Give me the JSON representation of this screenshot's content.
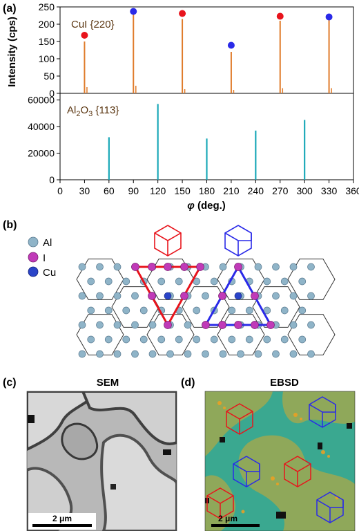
{
  "panels": {
    "a": "(a)",
    "b": "(b)",
    "c": "(c)",
    "d": "(d)"
  },
  "chart_data": [
    {
      "type": "bar",
      "panel": "(a) top",
      "series_label_main": "CuI {220}",
      "ylabel": "Intensity (cps)",
      "xlim": [
        0,
        360
      ],
      "ylim": [
        0,
        250
      ],
      "yticks": [
        0,
        50,
        100,
        150,
        200,
        250
      ],
      "color": "#e07b2a",
      "peaks": [
        {
          "x": 30,
          "y": 150
        },
        {
          "x": 90,
          "y": 235
        },
        {
          "x": 150,
          "y": 215
        },
        {
          "x": 210,
          "y": 120
        },
        {
          "x": 270,
          "y": 210
        },
        {
          "x": 330,
          "y": 215
        }
      ],
      "small_peaks": [
        {
          "x": 33,
          "y": 18
        },
        {
          "x": 93,
          "y": 22
        },
        {
          "x": 153,
          "y": 12
        },
        {
          "x": 213,
          "y": 10
        },
        {
          "x": 273,
          "y": 15
        },
        {
          "x": 333,
          "y": 15
        }
      ],
      "markers": [
        {
          "x": 30,
          "y": 168,
          "color": "#e8141c"
        },
        {
          "x": 90,
          "y": 237,
          "color": "#2a2ae8"
        },
        {
          "x": 150,
          "y": 231,
          "color": "#e8141c"
        },
        {
          "x": 210,
          "y": 139,
          "color": "#2a2ae8"
        },
        {
          "x": 270,
          "y": 223,
          "color": "#e8141c"
        },
        {
          "x": 330,
          "y": 221,
          "color": "#2a2ae8"
        }
      ]
    },
    {
      "type": "bar",
      "panel": "(a) bottom",
      "series_label_main": "Al",
      "series_label_sub": "2",
      "series_label_mid": "O",
      "series_label_sub2": "3",
      "series_label_tail": " {113}",
      "xlabel_symbol": "φ",
      "xlabel_unit": " (deg.)",
      "xlim": [
        0,
        360
      ],
      "xticks": [
        0,
        30,
        60,
        90,
        120,
        150,
        180,
        210,
        240,
        270,
        300,
        330,
        360
      ],
      "ylim": [
        0,
        65000
      ],
      "yticks": [
        0,
        20000,
        40000,
        60000
      ],
      "color": "#1aa8b8",
      "peaks": [
        {
          "x": 60,
          "y": 32000
        },
        {
          "x": 120,
          "y": 57000
        },
        {
          "x": 180,
          "y": 31000
        },
        {
          "x": 240,
          "y": 37000
        },
        {
          "x": 300,
          "y": 45000
        }
      ]
    }
  ],
  "legend_b": {
    "items": [
      {
        "label": "Al",
        "color": "#8fb4c8"
      },
      {
        "label": "I",
        "color": "#c03ab8"
      },
      {
        "label": "Cu",
        "color": "#2a44c8"
      }
    ]
  },
  "images": {
    "sem_title": "SEM",
    "ebsd_title": "EBSD",
    "sem_scale": "2 μm",
    "ebsd_scale": "2 μm"
  },
  "colors": {
    "red": "#e8141c",
    "blue": "#2a2ae8",
    "ebsd_green": "#8fa85a",
    "ebsd_teal": "#3aa890",
    "ebsd_orange": "#f0a020"
  }
}
